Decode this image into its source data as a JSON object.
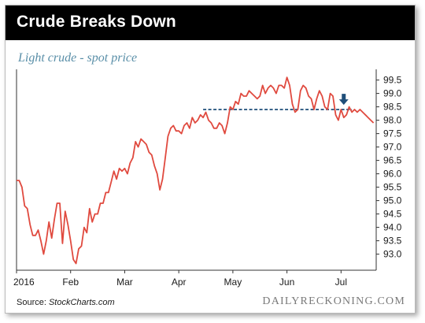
{
  "header": {
    "title": "Crude Breaks Down"
  },
  "colors": {
    "header_bg": "#000000",
    "line": "#e04a3f",
    "resistance": "#1f4e79",
    "subtitle": "#5a8fa8"
  },
  "footer": {
    "source_prefix": "Source: ",
    "source_name": "StockCharts.com",
    "brand": "DAILYRECKONING.COM"
  },
  "chart_data": {
    "type": "line",
    "title": "Light crude - spot price",
    "x_tick_labels": [
      "2016",
      "Feb",
      "Mar",
      "Apr",
      "May",
      "Jun",
      "Jul"
    ],
    "x_tick_positions": [
      0,
      20,
      40,
      60,
      80,
      100,
      120
    ],
    "y_tick_labels": [
      "99.5",
      "99.0",
      "98.5",
      "98.0",
      "97.5",
      "97.0",
      "96.5",
      "96.0",
      "95.5",
      "95.0",
      "94.5",
      "94.0",
      "93.5",
      "93.0"
    ],
    "ylim": [
      92.4,
      99.9
    ],
    "xlim": [
      0,
      133
    ],
    "grid": false,
    "y_axis_side": "right",
    "series": [
      {
        "x": [
          0,
          1,
          2,
          3,
          4,
          5,
          6,
          7,
          8,
          9,
          10,
          11,
          12,
          13,
          14,
          15,
          16,
          17,
          18,
          19,
          20,
          21,
          22,
          23,
          24,
          25,
          26,
          27,
          28,
          29,
          30,
          31,
          32,
          33,
          34,
          35,
          36,
          37,
          38,
          39,
          40,
          41,
          42,
          43,
          44,
          45,
          46,
          47,
          48,
          49,
          50,
          51,
          52,
          53,
          54,
          55,
          56,
          57,
          58,
          59,
          60,
          61,
          62,
          63,
          64,
          65,
          66,
          67,
          68,
          69,
          70,
          71,
          72,
          73,
          74,
          75,
          76,
          77,
          78,
          79,
          80,
          81,
          82,
          83,
          84,
          85,
          86,
          87,
          88,
          89,
          90,
          91,
          92,
          93,
          94,
          95,
          96,
          97,
          98,
          99,
          100,
          101,
          102,
          103,
          104,
          105,
          106,
          107,
          108,
          109,
          110,
          111,
          112,
          113,
          114,
          115,
          116,
          117,
          118,
          119,
          120,
          121,
          122,
          123,
          124,
          125,
          126,
          127,
          128,
          129,
          130,
          131,
          132
        ],
        "values": [
          95.75,
          95.75,
          95.5,
          94.8,
          94.7,
          94.1,
          93.7,
          93.7,
          93.9,
          93.5,
          93.0,
          93.5,
          94.2,
          93.6,
          94.3,
          94.9,
          94.9,
          93.4,
          94.6,
          94.1,
          93.5,
          92.8,
          92.65,
          93.2,
          93.3,
          94.0,
          93.8,
          94.7,
          94.2,
          94.5,
          94.5,
          94.9,
          94.9,
          95.3,
          95.3,
          95.7,
          96.1,
          95.8,
          96.2,
          96.1,
          96.2,
          96.0,
          96.4,
          96.6,
          97.2,
          97.0,
          97.3,
          97.2,
          97.1,
          96.8,
          96.7,
          96.3,
          96.0,
          95.4,
          95.8,
          96.6,
          97.4,
          97.7,
          97.8,
          97.6,
          97.6,
          97.5,
          97.8,
          97.9,
          97.7,
          98.1,
          97.9,
          98.0,
          98.2,
          98.1,
          98.3,
          98.0,
          97.9,
          97.7,
          97.7,
          97.9,
          97.8,
          97.5,
          97.9,
          98.5,
          98.4,
          98.7,
          98.6,
          99.0,
          98.9,
          98.9,
          99.1,
          99.0,
          98.9,
          98.8,
          98.9,
          99.3,
          99.0,
          99.2,
          99.3,
          99.2,
          99.0,
          99.3,
          99.3,
          99.2,
          99.6,
          99.3,
          98.6,
          98.3,
          98.4,
          99.1,
          99.3,
          99.2,
          98.9,
          98.8,
          98.4,
          98.8,
          99.1,
          98.9,
          98.5,
          98.4,
          99.0,
          98.9,
          98.2,
          98.0,
          98.4,
          98.1,
          98.2,
          98.5,
          98.3,
          98.4,
          98.3,
          98.4,
          98.3,
          98.2,
          98.1,
          98.0,
          97.9
        ]
      }
    ],
    "reference_line": {
      "y": 98.4,
      "x_start": 69,
      "x_end": 124,
      "style": "dashed"
    },
    "annotation": {
      "type": "down-arrow",
      "x": 121,
      "y": 98.75
    }
  }
}
